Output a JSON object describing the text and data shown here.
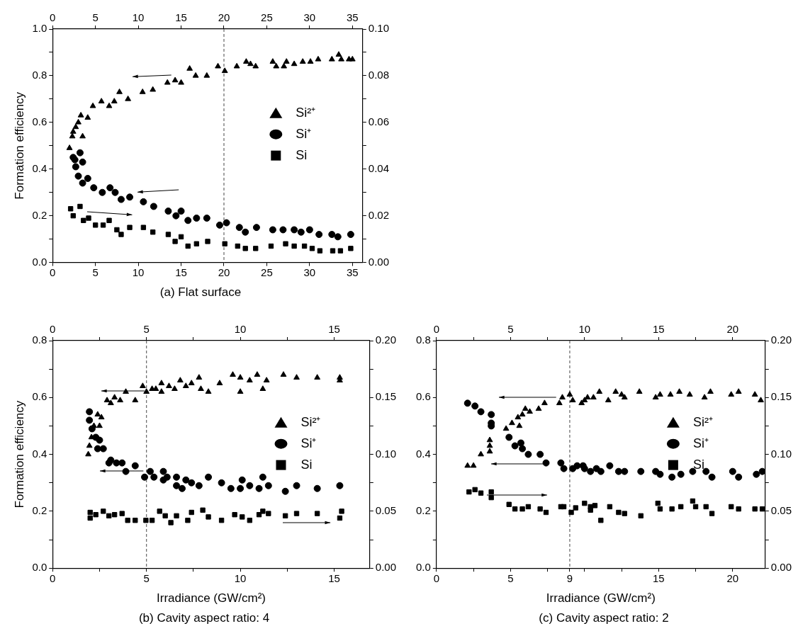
{
  "chart_data": [
    {
      "type": "scatter",
      "title": "(a) Flat surface",
      "ylabel": "Formation efficiency",
      "legend": "right",
      "xlim": [
        0,
        36.2
      ],
      "xticks": [
        0,
        5,
        10,
        15,
        20,
        25,
        30,
        35
      ],
      "x2lim": [
        0,
        36.2
      ],
      "x2ticks": [
        0,
        5,
        10,
        15,
        20,
        25,
        30,
        35
      ],
      "ylim": [
        0,
        1
      ],
      "yticks": [
        {
          "value": 0,
          "label": "0.0"
        },
        {
          "value": 0.1,
          "label": null
        },
        0.2,
        {
          "value": 0.3,
          "label": null
        },
        0.4,
        {
          "value": 0.5,
          "label": null
        },
        0.6,
        {
          "value": 0.7,
          "label": null
        },
        0.8,
        {
          "value": 0.9,
          "label": null
        },
        {
          "value": 1,
          "label": "1.0"
        }
      ],
      "y2lim": [
        0,
        0.1
      ],
      "y2ticks": [
        {
          "value": 0,
          "label": "0.00"
        },
        {
          "value": 0.01,
          "label": null
        },
        0.02,
        {
          "value": 0.03,
          "label": null
        },
        0.04,
        {
          "value": 0.05,
          "label": null
        },
        0.06,
        {
          "value": 0.07,
          "label": null
        },
        0.08,
        {
          "value": 0.09,
          "label": null
        },
        {
          "value": 0.1,
          "label": "0.10"
        }
      ],
      "ref_lines": [
        {
          "axis": "x",
          "value": 20,
          "color": "#666666",
          "line_style": "dashed"
        }
      ],
      "series": [
        {
          "name": "Si²⁺",
          "color": "#000000",
          "marker": "triangle",
          "x": [
            1.97,
            2.3,
            2.4,
            2.7,
            3.0,
            3.3,
            3.5,
            4.1,
            4.7,
            5.7,
            6.6,
            7.2,
            7.8,
            8.8,
            10.5,
            11.7,
            13.4,
            14.3,
            15.0,
            16.0,
            16.7,
            18.0,
            19.3,
            20.1,
            21.5,
            22.6,
            23.1,
            23.7,
            25.7,
            26.1,
            27.0,
            27.3,
            28.2,
            29.2,
            30.1,
            31.0,
            32.6,
            33.4,
            33.7,
            34.6,
            35.0
          ],
          "values": [
            0.49,
            0.54,
            0.56,
            0.58,
            0.6,
            0.63,
            0.54,
            0.62,
            0.67,
            0.69,
            0.67,
            0.69,
            0.73,
            0.7,
            0.73,
            0.74,
            0.77,
            0.78,
            0.77,
            0.83,
            0.8,
            0.8,
            0.84,
            0.82,
            0.84,
            0.86,
            0.85,
            0.84,
            0.86,
            0.84,
            0.84,
            0.86,
            0.85,
            0.86,
            0.86,
            0.87,
            0.87,
            0.89,
            0.87,
            0.87,
            0.87
          ]
        },
        {
          "name": "Si⁺",
          "color": "#000000",
          "marker": "circle",
          "x": [
            2.4,
            2.6,
            2.7,
            3.2,
            3.5,
            3.0,
            3.5,
            4.1,
            4.8,
            5.8,
            6.7,
            7.3,
            8.0,
            9.0,
            10.6,
            11.8,
            13.5,
            14.4,
            15.0,
            15.8,
            16.8,
            18.0,
            19.5,
            20.3,
            21.8,
            22.5,
            23.8,
            25.7,
            26.9,
            28.2,
            29.0,
            30.0,
            31.1,
            32.6,
            33.3,
            34.8
          ],
          "values": [
            0.45,
            0.44,
            0.41,
            0.47,
            0.43,
            0.37,
            0.34,
            0.36,
            0.32,
            0.3,
            0.32,
            0.3,
            0.27,
            0.28,
            0.26,
            0.24,
            0.22,
            0.2,
            0.22,
            0.18,
            0.19,
            0.19,
            0.16,
            0.17,
            0.15,
            0.13,
            0.15,
            0.14,
            0.14,
            0.14,
            0.13,
            0.14,
            0.12,
            0.12,
            0.11,
            0.12
          ]
        },
        {
          "name": "Si",
          "color": "#000000",
          "marker": "square",
          "axis": "y2",
          "x": [
            2.1,
            2.4,
            3.2,
            3.6,
            4.2,
            5.0,
            5.9,
            6.6,
            7.5,
            8.0,
            9.0,
            10.6,
            11.7,
            13.5,
            14.3,
            15.0,
            15.8,
            16.8,
            18.1,
            20.1,
            21.6,
            22.5,
            23.7,
            25.5,
            27.2,
            28.2,
            29.4,
            30.3,
            31.2,
            32.7,
            33.6,
            34.8
          ],
          "values": [
            0.023,
            0.02,
            0.024,
            0.018,
            0.019,
            0.016,
            0.016,
            0.018,
            0.014,
            0.012,
            0.015,
            0.015,
            0.013,
            0.012,
            0.009,
            0.011,
            0.007,
            0.008,
            0.009,
            0.008,
            0.007,
            0.006,
            0.006,
            0.007,
            0.008,
            0.007,
            0.007,
            0.006,
            0.005,
            0.005,
            0.005,
            0.006
          ]
        }
      ]
    },
    {
      "type": "scatter",
      "title": "(b) Cavity aspect ratio: 4",
      "xlabel": "Irradiance (GW/cm²)",
      "ylabel": "Formation efficiency",
      "legend": "right",
      "xlim": [
        0,
        16.9
      ],
      "xticks": [
        0,
        {
          "value": 2.5,
          "label": null
        },
        5,
        {
          "value": 7.5,
          "label": null
        },
        10,
        {
          "value": 12.5,
          "label": null
        },
        15
      ],
      "x2lim": [
        0,
        16.9
      ],
      "x2ticks": [
        0,
        {
          "value": 2.5,
          "label": null
        },
        5,
        {
          "value": 7.5,
          "label": null
        },
        10,
        {
          "value": 12.5,
          "label": null
        },
        15
      ],
      "ylim": [
        0,
        0.8
      ],
      "yticks": [
        {
          "value": 0,
          "label": "0.0"
        },
        {
          "value": 0.1,
          "label": null
        },
        0.2,
        {
          "value": 0.3,
          "label": null
        },
        0.4,
        {
          "value": 0.5,
          "label": null
        },
        0.6,
        {
          "value": 0.7,
          "label": null
        },
        0.8
      ],
      "y2lim": [
        0,
        0.2
      ],
      "y2ticks": [
        {
          "value": 0,
          "label": "0.00"
        },
        {
          "value": 0.025,
          "label": null
        },
        0.05,
        {
          "value": 0.075,
          "label": null
        },
        {
          "value": 0.1,
          "label": "0.10"
        },
        {
          "value": 0.125,
          "label": null
        },
        0.15,
        {
          "value": 0.175,
          "label": null
        },
        {
          "value": 0.2,
          "label": "0.20"
        }
      ],
      "ref_lines": [
        {
          "axis": "x",
          "value": 5,
          "color": "#666666",
          "line_style": "dashed"
        }
      ],
      "series": [
        {
          "name": "Si²⁺",
          "color": "#000000",
          "marker": "triangle",
          "x": [
            1.9,
            1.96,
            2.07,
            2.2,
            2.4,
            2.5,
            2.6,
            2.9,
            3.1,
            3.3,
            3.6,
            3.9,
            4.4,
            4.8,
            5.0,
            5.3,
            5.5,
            5.8,
            5.8,
            6.2,
            6.5,
            6.8,
            7.1,
            7.4,
            7.8,
            7.9,
            8.3,
            8.9,
            9.6,
            10.0,
            10.0,
            10.5,
            10.9,
            11.2,
            11.4,
            12.3,
            13.0,
            14.1,
            15.3,
            15.3
          ],
          "values": [
            0.4,
            0.43,
            0.46,
            0.5,
            0.54,
            0.5,
            0.53,
            0.59,
            0.58,
            0.6,
            0.59,
            0.62,
            0.59,
            0.64,
            0.62,
            0.63,
            0.63,
            0.62,
            0.65,
            0.64,
            0.63,
            0.66,
            0.64,
            0.65,
            0.67,
            0.63,
            0.62,
            0.65,
            0.68,
            0.67,
            0.62,
            0.66,
            0.68,
            0.63,
            0.66,
            0.68,
            0.67,
            0.67,
            0.67,
            0.66
          ]
        },
        {
          "name": "Si⁺",
          "color": "#000000",
          "marker": "circle",
          "x": [
            1.96,
            1.96,
            2.1,
            2.3,
            2.5,
            2.4,
            2.7,
            3.1,
            3.0,
            3.4,
            3.7,
            3.9,
            4.4,
            4.9,
            5.2,
            5.4,
            5.9,
            5.9,
            6.1,
            6.6,
            6.6,
            6.9,
            7.1,
            7.4,
            7.8,
            8.3,
            9.0,
            9.5,
            10.0,
            10.1,
            10.5,
            11.0,
            11.2,
            11.5,
            12.4,
            13.0,
            14.1,
            15.3
          ],
          "values": [
            0.55,
            0.52,
            0.49,
            0.46,
            0.45,
            0.42,
            0.42,
            0.38,
            0.37,
            0.37,
            0.37,
            0.34,
            0.36,
            0.32,
            0.34,
            0.32,
            0.34,
            0.31,
            0.32,
            0.32,
            0.29,
            0.28,
            0.31,
            0.3,
            0.29,
            0.32,
            0.3,
            0.28,
            0.28,
            0.31,
            0.29,
            0.28,
            0.32,
            0.29,
            0.27,
            0.29,
            0.28,
            0.29
          ]
        },
        {
          "name": "Si",
          "color": "#000000",
          "marker": "square",
          "axis": "y2",
          "x": [
            2.0,
            2.0,
            2.3,
            2.7,
            3.0,
            3.3,
            3.7,
            4.0,
            4.4,
            4.97,
            5.3,
            5.7,
            6.0,
            6.3,
            6.6,
            7.2,
            7.4,
            8.0,
            8.3,
            9.0,
            9.7,
            10.1,
            10.5,
            11.0,
            11.2,
            11.5,
            12.4,
            13.0,
            14.1,
            15.4,
            15.3
          ],
          "values": [
            0.049,
            0.044,
            0.047,
            0.05,
            0.046,
            0.047,
            0.048,
            0.042,
            0.042,
            0.042,
            0.042,
            0.05,
            0.046,
            0.04,
            0.046,
            0.042,
            0.049,
            0.051,
            0.045,
            0.042,
            0.047,
            0.045,
            0.042,
            0.047,
            0.05,
            0.048,
            0.046,
            0.048,
            0.048,
            0.05,
            0.044
          ]
        }
      ]
    },
    {
      "type": "scatter",
      "title": "(c) Cavity aspect ratio: 2",
      "xlabel": "Irradiance (GW/cm²)",
      "legend": "right",
      "xlim": [
        0,
        22.2
      ],
      "xticks": [
        0,
        {
          "value": 2.5,
          "label": null
        },
        5,
        {
          "value": 7.5,
          "label": null
        },
        9,
        {
          "value": 10,
          "label": null
        },
        {
          "value": 12.5,
          "label": null
        },
        15,
        {
          "value": 17.5,
          "label": null
        },
        20
      ],
      "x2lim": [
        0,
        22.2
      ],
      "x2ticks": [
        0,
        {
          "value": 2.5,
          "label": null
        },
        5,
        {
          "value": 7.5,
          "label": null
        },
        10,
        {
          "value": 12.5,
          "label": null
        },
        15,
        {
          "value": 17.5,
          "label": null
        },
        20
      ],
      "ylim": [
        0,
        0.8
      ],
      "yticks": [
        {
          "value": 0,
          "label": "0.0"
        },
        {
          "value": 0.1,
          "label": null
        },
        0.2,
        {
          "value": 0.3,
          "label": null
        },
        0.4,
        {
          "value": 0.5,
          "label": null
        },
        0.6,
        {
          "value": 0.7,
          "label": null
        },
        0.8
      ],
      "y2lim": [
        0,
        0.2
      ],
      "y2ticks": [
        {
          "value": 0,
          "label": "0.00"
        },
        {
          "value": 0.025,
          "label": null
        },
        0.05,
        {
          "value": 0.075,
          "label": null
        },
        {
          "value": 0.1,
          "label": "0.10"
        },
        {
          "value": 0.125,
          "label": null
        },
        0.15,
        {
          "value": 0.175,
          "label": null
        },
        {
          "value": 0.2,
          "label": "0.20"
        }
      ],
      "ref_lines": [
        {
          "axis": "x",
          "value": 9,
          "color": "#666666",
          "line_style": "dashed"
        }
      ],
      "series": [
        {
          "name": "Si²⁺",
          "color": "#000000",
          "marker": "triangle",
          "x": [
            2.1,
            2.5,
            3.0,
            3.6,
            3.6,
            3.6,
            4.7,
            5.1,
            5.6,
            5.5,
            5.8,
            6.0,
            6.3,
            6.9,
            7.3,
            8.3,
            8.5,
            9.0,
            9.2,
            9.8,
            10.0,
            10.2,
            10.6,
            11.0,
            11.6,
            12.1,
            12.5,
            12.7,
            13.7,
            14.8,
            15.1,
            15.8,
            16.4,
            17.1,
            18.1,
            18.5,
            19.9,
            20.4,
            21.5,
            21.9
          ],
          "values": [
            0.36,
            0.36,
            0.4,
            0.41,
            0.43,
            0.45,
            0.49,
            0.51,
            0.5,
            0.53,
            0.54,
            0.56,
            0.55,
            0.56,
            0.58,
            0.58,
            0.6,
            0.61,
            0.59,
            0.58,
            0.59,
            0.6,
            0.6,
            0.62,
            0.59,
            0.62,
            0.61,
            0.6,
            0.62,
            0.6,
            0.61,
            0.61,
            0.62,
            0.61,
            0.6,
            0.62,
            0.61,
            0.62,
            0.61,
            0.59
          ]
        },
        {
          "name": "Si⁺",
          "color": "#000000",
          "marker": "circle",
          "x": [
            2.1,
            2.6,
            3.0,
            3.7,
            3.7,
            3.7,
            4.9,
            5.3,
            5.7,
            5.8,
            6.2,
            7.0,
            7.4,
            8.4,
            8.6,
            9.2,
            9.5,
            9.9,
            10.0,
            10.4,
            10.8,
            11.1,
            11.7,
            12.3,
            12.7,
            13.8,
            14.8,
            15.1,
            15.9,
            16.5,
            17.3,
            18.2,
            18.6,
            20.0,
            20.4,
            21.6,
            22.0
          ],
          "values": [
            0.58,
            0.57,
            0.55,
            0.54,
            0.51,
            0.5,
            0.46,
            0.43,
            0.44,
            0.42,
            0.4,
            0.4,
            0.37,
            0.37,
            0.35,
            0.35,
            0.36,
            0.36,
            0.35,
            0.34,
            0.35,
            0.34,
            0.36,
            0.34,
            0.34,
            0.34,
            0.34,
            0.33,
            0.32,
            0.33,
            0.34,
            0.34,
            0.32,
            0.34,
            0.32,
            0.33,
            0.34
          ]
        },
        {
          "name": "Si",
          "color": "#000000",
          "marker": "square",
          "axis": "y2",
          "x": [
            2.2,
            2.6,
            3.0,
            3.7,
            3.7,
            4.9,
            5.3,
            5.8,
            6.2,
            7.0,
            7.4,
            8.4,
            8.6,
            9.1,
            9.4,
            10.0,
            10.4,
            10.4,
            10.7,
            11.1,
            11.7,
            12.3,
            12.7,
            13.8,
            14.95,
            15.1,
            15.9,
            16.5,
            17.3,
            17.5,
            18.2,
            18.6,
            19.9,
            20.4,
            21.5,
            22.0
          ],
          "values": [
            0.067,
            0.069,
            0.066,
            0.067,
            0.062,
            0.056,
            0.052,
            0.052,
            0.054,
            0.052,
            0.049,
            0.054,
            0.054,
            0.049,
            0.053,
            0.057,
            0.054,
            0.051,
            0.055,
            0.042,
            0.054,
            0.049,
            0.048,
            0.046,
            0.057,
            0.052,
            0.052,
            0.054,
            0.059,
            0.054,
            0.054,
            0.048,
            0.054,
            0.052,
            0.052,
            0.052
          ]
        }
      ]
    }
  ]
}
